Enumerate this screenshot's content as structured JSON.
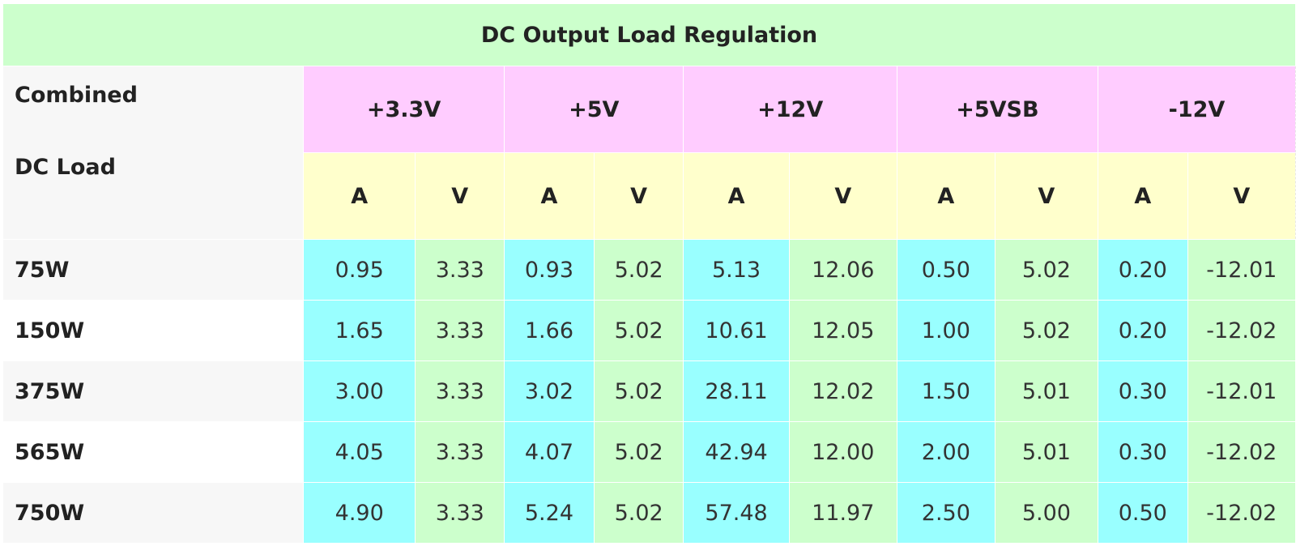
{
  "title": "DC Output Load Regulation",
  "label_header": {
    "line1": "Combined",
    "line2": "DC Load"
  },
  "rails": [
    "+3.3V",
    "+5V",
    "+12V",
    "+5VSB",
    "-12V"
  ],
  "units": [
    "A",
    "V",
    "A",
    "V",
    "A",
    "V",
    "A",
    "V",
    "A",
    "V"
  ],
  "rows": [
    {
      "load": "75W",
      "values": [
        "0.95",
        "3.33",
        "0.93",
        "5.02",
        "5.13",
        "12.06",
        "0.50",
        "5.02",
        "0.20",
        "-12.01"
      ]
    },
    {
      "load": "150W",
      "values": [
        "1.65",
        "3.33",
        "1.66",
        "5.02",
        "10.61",
        "12.05",
        "1.00",
        "5.02",
        "0.20",
        "-12.02"
      ]
    },
    {
      "load": "375W",
      "values": [
        "3.00",
        "3.33",
        "3.02",
        "5.02",
        "28.11",
        "12.02",
        "1.50",
        "5.01",
        "0.30",
        "-12.01"
      ]
    },
    {
      "load": "565W",
      "values": [
        "4.05",
        "3.33",
        "4.07",
        "5.02",
        "42.94",
        "12.00",
        "2.00",
        "5.01",
        "0.30",
        "-12.02"
      ]
    },
    {
      "load": "750W",
      "values": [
        "4.90",
        "3.33",
        "5.24",
        "5.02",
        "57.48",
        "11.97",
        "2.50",
        "5.00",
        "0.50",
        "-12.02"
      ]
    }
  ],
  "colors": {
    "title_bg": "#ccffcc",
    "rail_bg": "#ffccff",
    "unit_bg": "#ffffcc",
    "amp_bg": "#99ffff",
    "volt_bg": "#ccffcc"
  }
}
